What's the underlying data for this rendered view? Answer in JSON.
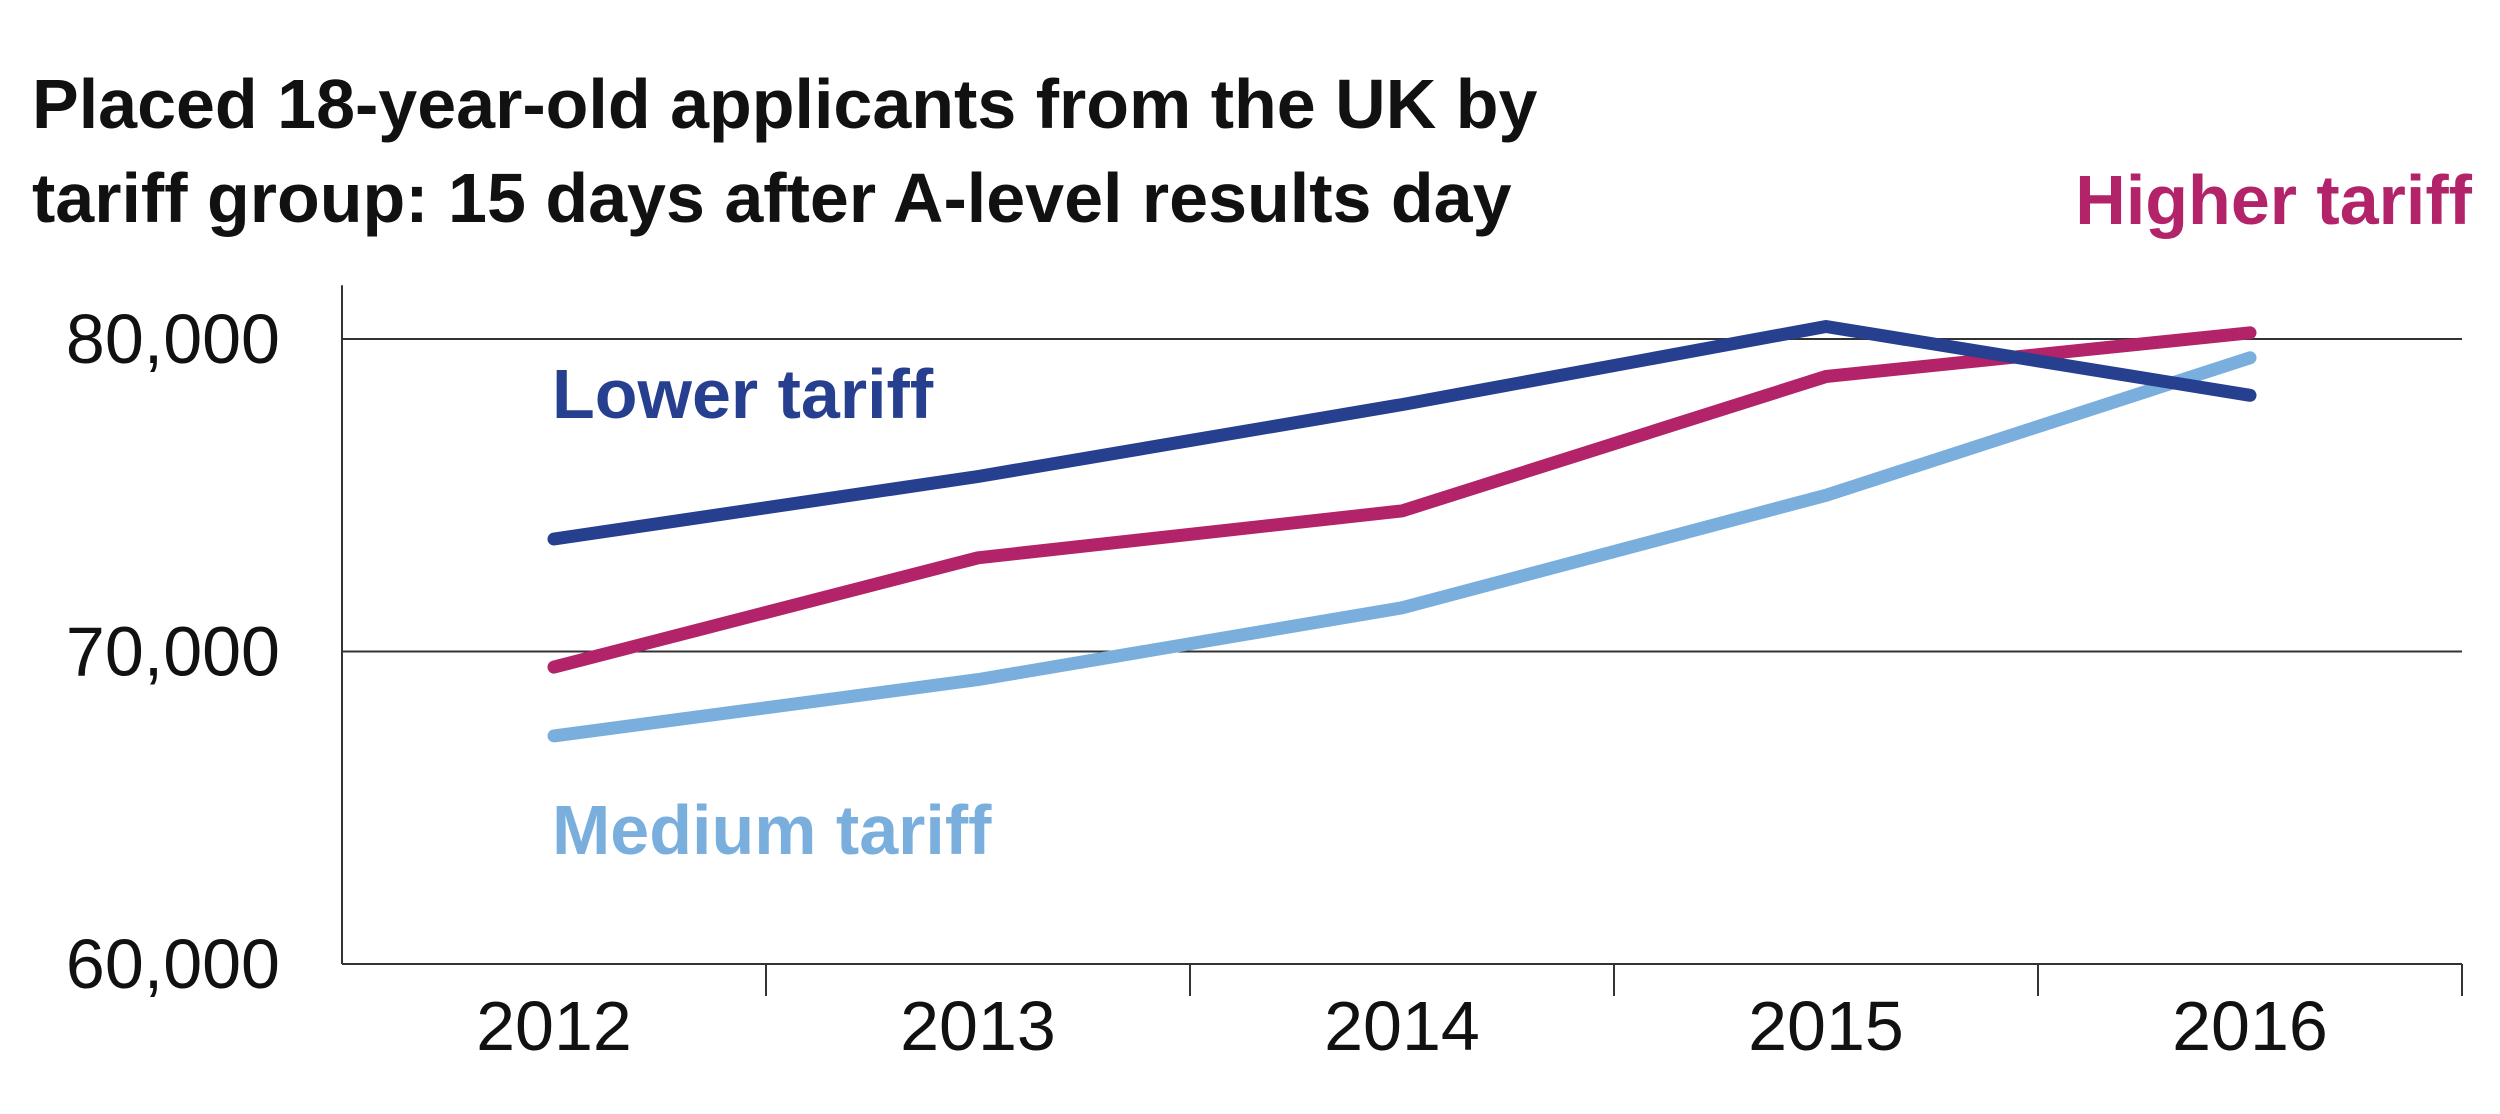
{
  "chart_data": {
    "type": "line",
    "title": "Placed 18-year-old applicants from the UK by tariff group: 15 days after A-level results day",
    "title_lines": [
      "Placed 18-year-old applicants from the UK by",
      "tariff group: 15 days after A-level results day"
    ],
    "xlabel": "",
    "ylabel": "",
    "categories": [
      "2012",
      "2013",
      "2014",
      "2015",
      "2016"
    ],
    "y_ticks": [
      60000,
      70000,
      80000
    ],
    "y_tick_labels": [
      "60,000",
      "70,000",
      "80,000"
    ],
    "ylim": [
      60000,
      81400
    ],
    "grid": "horizontal",
    "series": [
      {
        "name": "Lower tariff",
        "color": "#263f8f",
        "values": [
          73600,
          75600,
          77900,
          80400,
          78200
        ]
      },
      {
        "name": "Higher tariff",
        "color": "#b22369",
        "values": [
          69500,
          73000,
          74500,
          78800,
          80200
        ]
      },
      {
        "name": "Medium tariff",
        "color": "#7aaedc",
        "values": [
          67300,
          69100,
          71400,
          75000,
          79400
        ]
      }
    ]
  }
}
